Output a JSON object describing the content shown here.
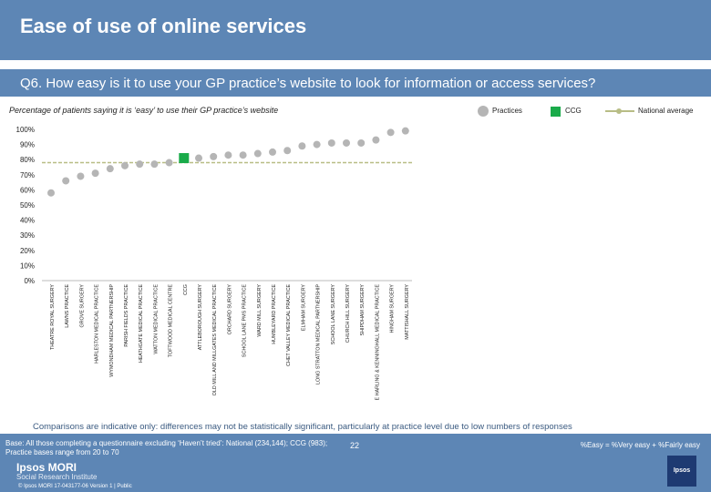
{
  "header": {
    "title": "Ease of use of online services"
  },
  "question": "Q6. How easy is it to use your GP practice’s website to look for information or access services?",
  "subtitle": "Percentage of patients saying it is ‘easy’ to use their GP practice’s website",
  "legend": {
    "practices": "Practices",
    "ccg": "CCG",
    "national": "National average"
  },
  "colors": {
    "header": "#5d86b5",
    "practice": "#b5b5b5",
    "ccg": "#1aab4a",
    "national": "#b8bd86"
  },
  "chart_data": {
    "type": "scatter",
    "title": "Percentage of patients saying it is ‘easy’ to use their GP practice’s website",
    "ylim": [
      0,
      100
    ],
    "yticks": [
      "0%",
      "10%",
      "20%",
      "30%",
      "40%",
      "50%",
      "60%",
      "70%",
      "80%",
      "90%",
      "100%"
    ],
    "national_average": 78,
    "categories": [
      "THEATRE ROYAL SURGERY",
      "LAWNS PRACTICE",
      "GROVE SURGERY",
      "HARLESTON MEDICAL PRACTICE",
      "WYMONDHAM MEDICAL PARTNERSHIP",
      "PARISH FIELDS PRACTICE",
      "HEATHGATE MEDICAL PRACTICE",
      "WATTON MEDICAL PRACTICE",
      "TOFTWOOD MEDICAL CENTRE",
      "CCG",
      "ATTLEBOROUGH SURGERY",
      "OLD MILL AND MILLGATES MEDICAL PRACTICE",
      "ORCHARD SURGERY",
      "SCHOOL LANE PMS PRACTICE",
      "WARD MILL SURGERY",
      "HUMBLEYARD PRACTICE",
      "CHET VALLEY MEDICAL PRACTICE",
      "ELMHAM SURGERY",
      "LONG STRATTON MEDICAL PARTNERSHIP",
      "SCHOOL LANE SURGERY",
      "CHURCH HILL SURGERY",
      "SHIPDHAM SURGERY",
      "E HARLING & KENNINGHALL MEDICAL PRACTICE",
      "HINGHAM SURGERY",
      "MATTISHALL SURGERY"
    ],
    "values": [
      58,
      66,
      69,
      71,
      74,
      76,
      77,
      77,
      78,
      81,
      81,
      82,
      83,
      83,
      84,
      85,
      86,
      89,
      90,
      91,
      91,
      91,
      93,
      98,
      99
    ],
    "ccg_index": 9
  },
  "note": "Comparisons are indicative only: differences may not be statistically significant, particularly at practice level due to low numbers of responses",
  "footer": {
    "base": "Base: All those completing a questionnaire excluding ‘Haven’t tried’: National (234,144); CCG (983); Practice bases range from 20 to 70",
    "easy_def": "%Easy = %Very easy + %Fairly easy",
    "page": "22",
    "logo": "Ipsos MORI",
    "logo_sub": "Social Research Institute",
    "copyright": "© Ipsos MORI    17-043177-06 Version 1 | Public",
    "brand_box": "Ipsos"
  }
}
